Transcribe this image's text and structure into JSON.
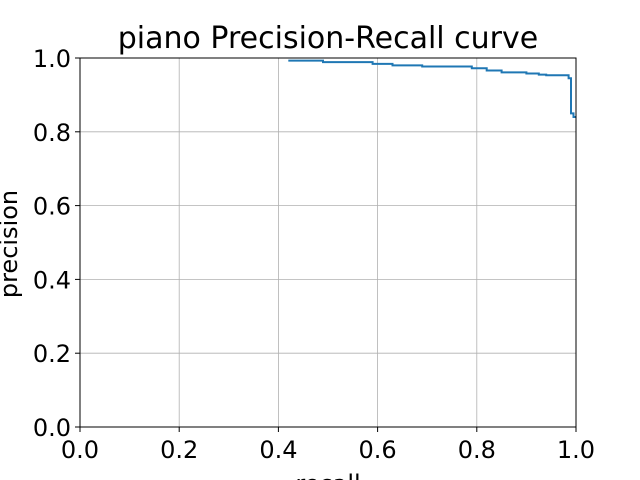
{
  "chart_data": {
    "type": "line",
    "title": "piano Precision-Recall curve",
    "xlabel": "recall",
    "ylabel": "precision",
    "xlim": [
      0.0,
      1.0
    ],
    "ylim": [
      0.0,
      1.0
    ],
    "x_ticks": [
      "0.0",
      "0.2",
      "0.4",
      "0.6",
      "0.8",
      "1.0"
    ],
    "y_ticks": [
      "0.0",
      "0.2",
      "0.4",
      "0.6",
      "0.8",
      "1.0"
    ],
    "grid": true,
    "series": [
      {
        "color": "#1f77b4",
        "x": [
          0.42,
          0.49,
          0.49,
          0.59,
          0.59,
          0.63,
          0.63,
          0.69,
          0.69,
          0.79,
          0.79,
          0.82,
          0.82,
          0.85,
          0.85,
          0.9,
          0.9,
          0.925,
          0.925,
          0.94,
          0.94,
          0.985,
          0.985,
          0.99,
          0.99,
          0.995,
          0.995,
          1.0
        ],
        "y": [
          0.993,
          0.993,
          0.989,
          0.989,
          0.984,
          0.984,
          0.98,
          0.98,
          0.977,
          0.977,
          0.972,
          0.972,
          0.966,
          0.966,
          0.961,
          0.961,
          0.958,
          0.958,
          0.955,
          0.955,
          0.953,
          0.953,
          0.945,
          0.945,
          0.85,
          0.85,
          0.84,
          0.84
        ]
      }
    ]
  }
}
